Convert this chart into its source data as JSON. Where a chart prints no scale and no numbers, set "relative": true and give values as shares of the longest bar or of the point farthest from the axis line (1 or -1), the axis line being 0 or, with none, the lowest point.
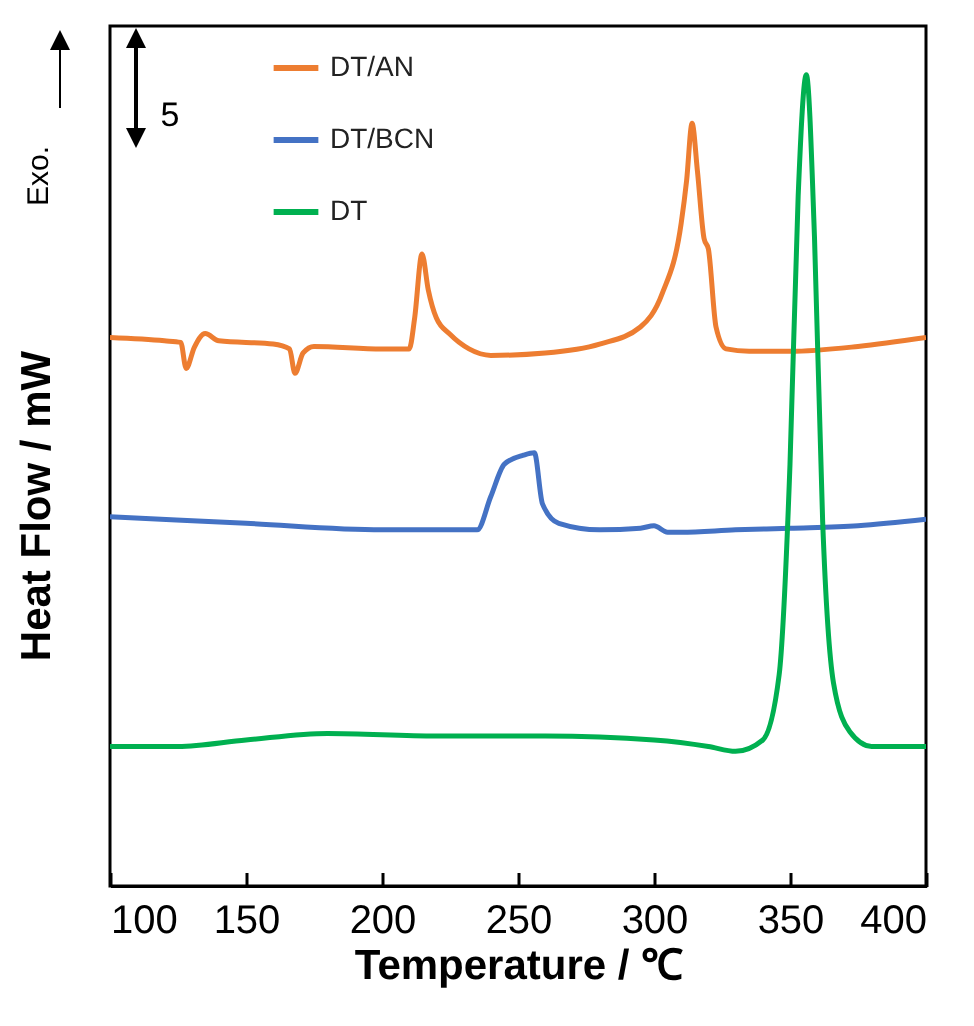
{
  "chart_data": {
    "type": "line",
    "relative": true,
    "xlabel": "Temperature / ℃",
    "ylabel": "Heat Flow / mW",
    "annotations": [
      "Exo.",
      "5"
    ],
    "xlim": [
      100,
      400
    ],
    "xticks": [
      100,
      150,
      200,
      250,
      300,
      350,
      400
    ],
    "grid": false,
    "legend": "top left",
    "marker": "none",
    "line_style": "solid",
    "series": [
      {
        "name": "DT/AN",
        "color": "#ed7d31",
        "x": [
          100,
          120,
          126,
          128,
          131,
          135,
          140,
          160,
          166,
          168,
          171,
          175,
          200,
          210,
          212,
          214.7,
          217,
          220,
          225,
          232,
          240,
          260,
          280,
          295,
          303,
          310,
          312,
          314,
          316,
          318.4,
          320,
          322.8,
          326.5,
          335,
          350,
          375,
          400
        ],
        "values": [
          0.676,
          0.672,
          0.67,
          0.638,
          0.664,
          0.681,
          0.672,
          0.668,
          0.662,
          0.632,
          0.657,
          0.665,
          0.662,
          0.662,
          0.7,
          0.779,
          0.735,
          0.7,
          0.68,
          0.662,
          0.654,
          0.657,
          0.668,
          0.689,
          0.73,
          0.817,
          0.87,
          0.94,
          0.88,
          0.798,
          0.785,
          0.689,
          0.662,
          0.659,
          0.659,
          0.665,
          0.676
        ]
      },
      {
        "name": "DT/BCN",
        "color": "#4472c4",
        "x": [
          100,
          150,
          200,
          235,
          240,
          245,
          252,
          256,
          259,
          265,
          280,
          295,
          300,
          305,
          310,
          330,
          350,
          375,
          400
        ],
        "values": [
          0.455,
          0.447,
          0.439,
          0.439,
          0.48,
          0.52,
          0.531,
          0.534,
          0.471,
          0.447,
          0.439,
          0.441,
          0.444,
          0.436,
          0.436,
          0.439,
          0.441,
          0.444,
          0.452
        ]
      },
      {
        "name": "DT",
        "color": "#00b050",
        "x": [
          100,
          125,
          150,
          180,
          220,
          260,
          300,
          320,
          330,
          340,
          346,
          350,
          353,
          356,
          359,
          362,
          366,
          372,
          380,
          400
        ],
        "values": [
          0.172,
          0.172,
          0.18,
          0.188,
          0.185,
          0.185,
          0.18,
          0.172,
          0.166,
          0.18,
          0.26,
          0.52,
          0.85,
          1.0,
          0.8,
          0.45,
          0.25,
          0.19,
          0.172,
          0.172
        ]
      }
    ]
  }
}
